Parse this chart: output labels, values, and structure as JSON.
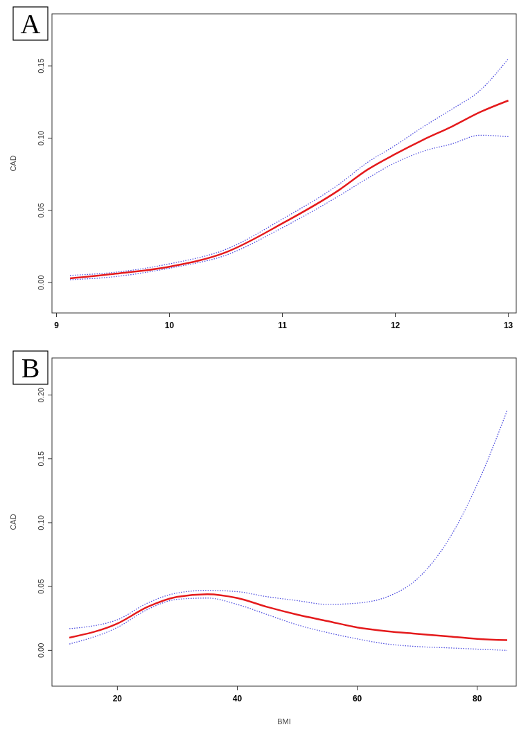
{
  "chart_data": [
    {
      "type": "line",
      "title": "A",
      "ylabel": "CAD",
      "xlim": [
        8.96,
        13.07
      ],
      "xticks": [
        9,
        10,
        11,
        12,
        13
      ],
      "ylim": [
        -0.021,
        0.186
      ],
      "yticks": [
        {
          "value": 0,
          "label": "0.00"
        },
        {
          "value": 0.05,
          "label": "0.05"
        },
        {
          "value": 0.1,
          "label": "0.10"
        },
        {
          "value": 0.15,
          "label": "0.15"
        }
      ],
      "grid": false,
      "line_style": "solid",
      "series": [
        {
          "color": "#5050e0",
          "line_style": "dotted",
          "x": [
            9.12,
            9.5,
            10,
            10.5,
            11,
            11.5,
            11.75,
            12,
            12.25,
            12.5,
            12.75,
            13
          ],
          "values": [
            0.002,
            0.004,
            0.01,
            0.019,
            0.038,
            0.06,
            0.072,
            0.083,
            0.091,
            0.096,
            0.102,
            0.101
          ]
        },
        {
          "color": "#5050e0",
          "line_style": "dotted",
          "x": [
            9.12,
            9.5,
            10,
            10.5,
            11,
            11.5,
            11.75,
            12,
            12.25,
            12.5,
            12.75,
            13
          ],
          "values": [
            0.005,
            0.007,
            0.013,
            0.023,
            0.044,
            0.068,
            0.083,
            0.095,
            0.108,
            0.12,
            0.133,
            0.155
          ]
        },
        {
          "color": "#e41a1c",
          "x": [
            9.12,
            9.5,
            10,
            10.5,
            11,
            11.5,
            11.75,
            12,
            12.25,
            12.5,
            12.75,
            13
          ],
          "values": [
            0.003,
            0.006,
            0.011,
            0.021,
            0.041,
            0.064,
            0.078,
            0.089,
            0.099,
            0.108,
            0.118,
            0.126
          ]
        }
      ]
    },
    {
      "type": "line",
      "title": "B",
      "xlabel": "BMI",
      "ylabel": "CAD",
      "xlim": [
        9.1,
        86.5
      ],
      "xticks": [
        20,
        40,
        60,
        80
      ],
      "ylim": [
        -0.028,
        0.229
      ],
      "yticks": [
        {
          "value": 0,
          "label": "0.00"
        },
        {
          "value": 0.05,
          "label": "0.05"
        },
        {
          "value": 0.1,
          "label": "0.10"
        },
        {
          "value": 0.15,
          "label": "0.15"
        },
        {
          "value": 0.2,
          "label": "0.20"
        }
      ],
      "grid": false,
      "line_style": "solid",
      "series": [
        {
          "color": "#5050e0",
          "line_style": "dotted",
          "x": [
            12,
            20,
            25,
            30,
            35,
            40,
            45,
            50,
            55,
            60,
            65,
            70,
            75,
            80,
            85
          ],
          "values": [
            0.005,
            0.018,
            0.032,
            0.04,
            0.041,
            0.036,
            0.028,
            0.02,
            0.014,
            0.009,
            0.005,
            0.003,
            0.002,
            0.001,
            0
          ]
        },
        {
          "color": "#5050e0",
          "line_style": "dotted",
          "x": [
            12,
            20,
            25,
            30,
            35,
            40,
            45,
            50,
            55,
            60,
            65,
            70,
            75,
            80,
            85
          ],
          "values": [
            0.017,
            0.024,
            0.037,
            0.045,
            0.047,
            0.046,
            0.042,
            0.039,
            0.036,
            0.037,
            0.042,
            0.056,
            0.085,
            0.13,
            0.188
          ]
        },
        {
          "color": "#e41a1c",
          "x": [
            12,
            20,
            25,
            30,
            35,
            40,
            45,
            50,
            55,
            60,
            65,
            70,
            75,
            80,
            85
          ],
          "values": [
            0.01,
            0.021,
            0.034,
            0.042,
            0.044,
            0.041,
            0.034,
            0.028,
            0.023,
            0.018,
            0.015,
            0.013,
            0.011,
            0.009,
            0.008
          ]
        }
      ]
    }
  ]
}
